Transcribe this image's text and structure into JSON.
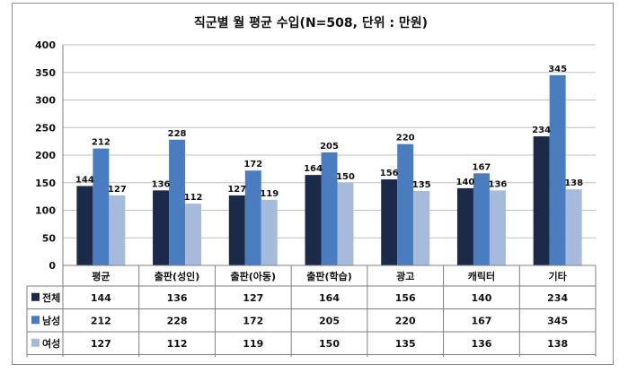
{
  "chart_data": {
    "type": "bar",
    "title": "직군별 월 평균 수입(N=508, 단위 : 만원)",
    "categories": [
      "평균",
      "출판(성인)",
      "출판(아동)",
      "출판(학습)",
      "광고",
      "캐릭터",
      "기타"
    ],
    "series": [
      {
        "name": "전체",
        "color": "#1b2a48",
        "values": [
          144,
          136,
          127,
          164,
          156,
          140,
          234
        ]
      },
      {
        "name": "남성",
        "color": "#4a7dbf",
        "values": [
          212,
          228,
          172,
          205,
          220,
          167,
          345
        ]
      },
      {
        "name": "여성",
        "color": "#a6bbdb",
        "values": [
          127,
          112,
          119,
          150,
          135,
          136,
          138
        ]
      }
    ],
    "ylim": [
      0,
      400
    ],
    "yticks": [
      0,
      50,
      100,
      150,
      200,
      250,
      300,
      350,
      400
    ],
    "grid": true,
    "legend": "table-left",
    "data_table": true
  }
}
